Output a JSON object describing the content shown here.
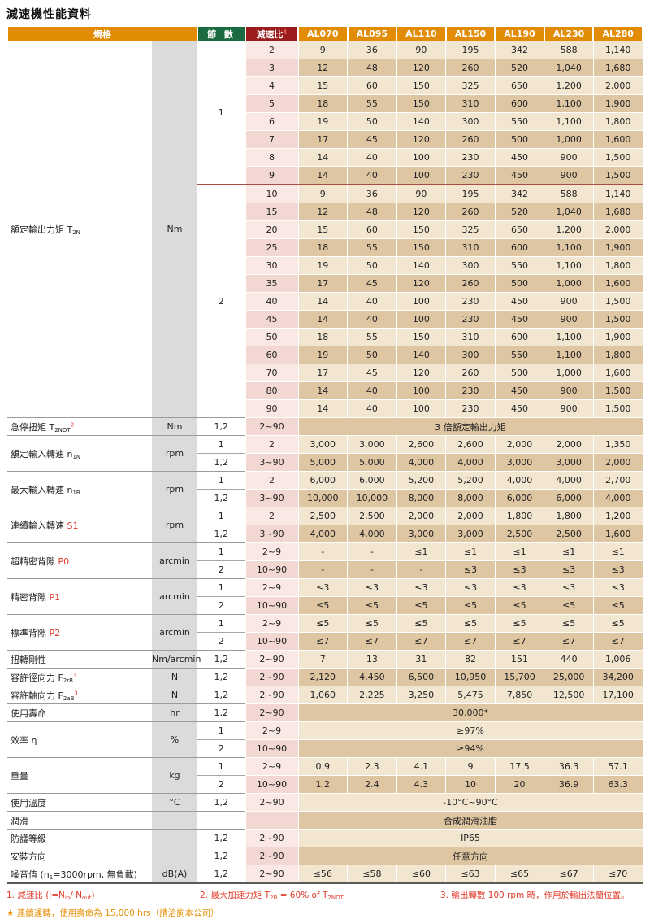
{
  "title": "減速機性能資料",
  "header": {
    "spec": "規格",
    "stages": "節 數",
    "ratio": "減速比",
    "ratio_footnote": "1",
    "models": [
      "AL070",
      "AL095",
      "AL110",
      "AL150",
      "AL190",
      "AL230",
      "AL280"
    ]
  },
  "torque": {
    "label_parts": [
      {
        "t": "額定輸出力矩 T"
      },
      {
        "t": "2N",
        "sub": true
      }
    ],
    "unit": "Nm",
    "groups": [
      {
        "stage": "1",
        "rows": [
          {
            "ratio": "2",
            "values": [
              "9",
              "36",
              "90",
              "195",
              "342",
              "588",
              "1,140"
            ]
          },
          {
            "ratio": "3",
            "values": [
              "12",
              "48",
              "120",
              "260",
              "520",
              "1,040",
              "1,680"
            ]
          },
          {
            "ratio": "4",
            "values": [
              "15",
              "60",
              "150",
              "325",
              "650",
              "1,200",
              "2,000"
            ]
          },
          {
            "ratio": "5",
            "values": [
              "18",
              "55",
              "150",
              "310",
              "600",
              "1,100",
              "1,900"
            ]
          },
          {
            "ratio": "6",
            "values": [
              "19",
              "50",
              "140",
              "300",
              "550",
              "1,100",
              "1,800"
            ]
          },
          {
            "ratio": "7",
            "values": [
              "17",
              "45",
              "120",
              "260",
              "500",
              "1,000",
              "1,600"
            ]
          },
          {
            "ratio": "8",
            "values": [
              "14",
              "40",
              "100",
              "230",
              "450",
              "900",
              "1,500"
            ]
          },
          {
            "ratio": "9",
            "values": [
              "14",
              "40",
              "100",
              "230",
              "450",
              "900",
              "1,500"
            ]
          }
        ]
      },
      {
        "stage": "2",
        "rows": [
          {
            "ratio": "10",
            "values": [
              "9",
              "36",
              "90",
              "195",
              "342",
              "588",
              "1,140"
            ]
          },
          {
            "ratio": "15",
            "values": [
              "12",
              "48",
              "120",
              "260",
              "520",
              "1,040",
              "1,680"
            ]
          },
          {
            "ratio": "20",
            "values": [
              "15",
              "60",
              "150",
              "325",
              "650",
              "1,200",
              "2,000"
            ]
          },
          {
            "ratio": "25",
            "values": [
              "18",
              "55",
              "150",
              "310",
              "600",
              "1,100",
              "1,900"
            ]
          },
          {
            "ratio": "30",
            "values": [
              "19",
              "50",
              "140",
              "300",
              "550",
              "1,100",
              "1,800"
            ]
          },
          {
            "ratio": "35",
            "values": [
              "17",
              "45",
              "120",
              "260",
              "500",
              "1,000",
              "1,600"
            ]
          },
          {
            "ratio": "40",
            "values": [
              "14",
              "40",
              "100",
              "230",
              "450",
              "900",
              "1,500"
            ]
          },
          {
            "ratio": "45",
            "values": [
              "14",
              "40",
              "100",
              "230",
              "450",
              "900",
              "1,500"
            ]
          },
          {
            "ratio": "50",
            "values": [
              "18",
              "55",
              "150",
              "310",
              "600",
              "1,100",
              "1,900"
            ]
          },
          {
            "ratio": "60",
            "values": [
              "19",
              "50",
              "140",
              "300",
              "550",
              "1,100",
              "1,800"
            ]
          },
          {
            "ratio": "70",
            "values": [
              "17",
              "45",
              "120",
              "260",
              "500",
              "1,000",
              "1,600"
            ]
          },
          {
            "ratio": "80",
            "values": [
              "14",
              "40",
              "100",
              "230",
              "450",
              "900",
              "1,500"
            ]
          },
          {
            "ratio": "90",
            "values": [
              "14",
              "40",
              "100",
              "230",
              "450",
              "900",
              "1,500"
            ]
          }
        ]
      }
    ]
  },
  "spec_groups": [
    {
      "label_parts": [
        {
          "t": "急停扭矩 T"
        },
        {
          "t": "2NOT",
          "sub": true
        },
        {
          "t": "2",
          "sup": true,
          "red": true
        }
      ],
      "unit": "Nm",
      "rows": [
        {
          "stages": "1,2",
          "ratio": "2~90",
          "span": "3 倍額定輸出力矩"
        }
      ]
    },
    {
      "label_parts": [
        {
          "t": "額定輸入轉速 n"
        },
        {
          "t": "1N",
          "sub": true
        }
      ],
      "unit": "rpm",
      "rows": [
        {
          "stages": "1",
          "ratio": "2",
          "values": [
            "3,000",
            "3,000",
            "2,600",
            "2,600",
            "2,000",
            "2,000",
            "1,350"
          ]
        },
        {
          "stages": "1,2",
          "ratio": "3~90",
          "values": [
            "5,000",
            "5,000",
            "4,000",
            "4,000",
            "3,000",
            "3,000",
            "2,000"
          ]
        }
      ]
    },
    {
      "label_parts": [
        {
          "t": "最大輸入轉速 n"
        },
        {
          "t": "1B",
          "sub": true
        }
      ],
      "unit": "rpm",
      "rows": [
        {
          "stages": "1",
          "ratio": "2",
          "values": [
            "6,000",
            "6,000",
            "5,200",
            "5,200",
            "4,000",
            "4,000",
            "2,700"
          ]
        },
        {
          "stages": "1,2",
          "ratio": "3~90",
          "values": [
            "10,000",
            "10,000",
            "8,000",
            "8,000",
            "6,000",
            "6,000",
            "4,000"
          ]
        }
      ]
    },
    {
      "label_parts": [
        {
          "t": "連續輸入轉速 "
        },
        {
          "t": "S1",
          "red": true
        }
      ],
      "unit": "rpm",
      "rows": [
        {
          "stages": "1",
          "ratio": "2",
          "values": [
            "2,500",
            "2,500",
            "2,000",
            "2,000",
            "1,800",
            "1,800",
            "1,200"
          ]
        },
        {
          "stages": "1,2",
          "ratio": "3~90",
          "values": [
            "4,000",
            "4,000",
            "3,000",
            "3,000",
            "2,500",
            "2,500",
            "1,600"
          ]
        }
      ]
    },
    {
      "label_parts": [
        {
          "t": "超精密背隙 "
        },
        {
          "t": "P0",
          "red": true
        }
      ],
      "unit": "arcmin",
      "rows": [
        {
          "stages": "1",
          "ratio": "2~9",
          "values": [
            "-",
            "-",
            "≤1",
            "≤1",
            "≤1",
            "≤1",
            "≤1"
          ]
        },
        {
          "stages": "2",
          "ratio": "10~90",
          "values": [
            "-",
            "-",
            "-",
            "≤3",
            "≤3",
            "≤3",
            "≤3"
          ]
        }
      ]
    },
    {
      "label_parts": [
        {
          "t": "精密背隙 "
        },
        {
          "t": "P1",
          "red": true
        }
      ],
      "unit": "arcmin",
      "rows": [
        {
          "stages": "1",
          "ratio": "2~9",
          "values": [
            "≤3",
            "≤3",
            "≤3",
            "≤3",
            "≤3",
            "≤3",
            "≤3"
          ]
        },
        {
          "stages": "2",
          "ratio": "10~90",
          "values": [
            "≤5",
            "≤5",
            "≤5",
            "≤5",
            "≤5",
            "≤5",
            "≤5"
          ]
        }
      ]
    },
    {
      "label_parts": [
        {
          "t": "標準背隙 "
        },
        {
          "t": "P2",
          "red": true
        }
      ],
      "unit": "arcmin",
      "rows": [
        {
          "stages": "1",
          "ratio": "2~9",
          "values": [
            "≤5",
            "≤5",
            "≤5",
            "≤5",
            "≤5",
            "≤5",
            "≤5"
          ]
        },
        {
          "stages": "2",
          "ratio": "10~90",
          "values": [
            "≤7",
            "≤7",
            "≤7",
            "≤7",
            "≤7",
            "≤7",
            "≤7"
          ]
        }
      ]
    },
    {
      "label_parts": [
        {
          "t": "扭轉剛性"
        }
      ],
      "unit": "Nm/arcmin",
      "rows": [
        {
          "stages": "1,2",
          "ratio": "2~90",
          "values": [
            "7",
            "13",
            "31",
            "82",
            "151",
            "440",
            "1,006"
          ]
        }
      ]
    },
    {
      "label_parts": [
        {
          "t": "容許徑向力 F"
        },
        {
          "t": "2rB",
          "sub": true
        },
        {
          "t": "3",
          "sup": true,
          "red": true
        }
      ],
      "unit": "N",
      "rows": [
        {
          "stages": "1,2",
          "ratio": "2~90",
          "values": [
            "2,120",
            "4,450",
            "6,500",
            "10,950",
            "15,700",
            "25,000",
            "34,200"
          ]
        }
      ]
    },
    {
      "label_parts": [
        {
          "t": "容許軸向力 F"
        },
        {
          "t": "2aB",
          "sub": true
        },
        {
          "t": "3",
          "sup": true,
          "red": true
        }
      ],
      "unit": "N",
      "rows": [
        {
          "stages": "1,2",
          "ratio": "2~90",
          "values": [
            "1,060",
            "2,225",
            "3,250",
            "5,475",
            "7,850",
            "12,500",
            "17,100"
          ]
        }
      ]
    },
    {
      "label_parts": [
        {
          "t": "使用壽命"
        }
      ],
      "unit": "hr",
      "rows": [
        {
          "stages": "1,2",
          "ratio": "2~90",
          "span": "30,000*"
        }
      ]
    },
    {
      "label_parts": [
        {
          "t": "效率 η"
        }
      ],
      "unit": "%",
      "rows": [
        {
          "stages": "1",
          "ratio": "2~9",
          "span": "≥97%"
        },
        {
          "stages": "2",
          "ratio": "10~90",
          "span": "≥94%"
        }
      ]
    },
    {
      "label_parts": [
        {
          "t": "重量"
        }
      ],
      "unit": "kg",
      "rows": [
        {
          "stages": "1",
          "ratio": "2~9",
          "values": [
            "0.9",
            "2.3",
            "4.1",
            "9",
            "17.5",
            "36.3",
            "57.1"
          ]
        },
        {
          "stages": "2",
          "ratio": "10~90",
          "values": [
            "1.2",
            "2.4",
            "4.3",
            "10",
            "20",
            "36.9",
            "63.3"
          ]
        }
      ]
    },
    {
      "label_parts": [
        {
          "t": "使用溫度"
        }
      ],
      "unit": "°C",
      "rows": [
        {
          "stages": "1,2",
          "ratio": "2~90",
          "span": "-10°C~90°C"
        }
      ]
    },
    {
      "label_parts": [
        {
          "t": "潤滑"
        }
      ],
      "unit": "",
      "rows": [
        {
          "stages": "",
          "ratio": "",
          "span": "合成潤滑油脂"
        }
      ]
    },
    {
      "label_parts": [
        {
          "t": "防護等級"
        }
      ],
      "unit": "",
      "rows": [
        {
          "stages": "1,2",
          "ratio": "2~90",
          "span": "IP65"
        }
      ]
    },
    {
      "label_parts": [
        {
          "t": "安裝方向"
        }
      ],
      "unit": "",
      "rows": [
        {
          "stages": "1,2",
          "ratio": "2~90",
          "span": "任意方向"
        }
      ]
    },
    {
      "label_parts": [
        {
          "t": "噪音值 (n"
        },
        {
          "t": "1",
          "sub": true
        },
        {
          "t": "=3000rpm, 無負載)"
        }
      ],
      "unit": "dB(A)",
      "rows": [
        {
          "stages": "1,2",
          "ratio": "2~90",
          "values": [
            "≤56",
            "≤58",
            "≤60",
            "≤63",
            "≤65",
            "≤67",
            "≤70"
          ]
        }
      ]
    }
  ],
  "footnotes": {
    "fn1_parts": [
      {
        "t": "1. 減速比 (i=N"
      },
      {
        "t": "in",
        "sub": true
      },
      {
        "t": "/ N"
      },
      {
        "t": "out",
        "sub": true
      },
      {
        "t": ")"
      }
    ],
    "fn2_parts": [
      {
        "t": "2. 最大加速力矩 T"
      },
      {
        "t": "2B",
        "sub": true
      },
      {
        "t": " = 60% of T"
      },
      {
        "t": "2NOT",
        "sub": true
      }
    ],
    "fn3_parts": [
      {
        "t": "3. 輸出轉數 100 rpm 時，作用於輸出法蘭位置。"
      }
    ],
    "star_parts": [
      {
        "t": "★ 連續運轉，使用壽命為 15,000 hrs（請洽詢本公司）"
      }
    ]
  },
  "colors": {
    "header_orange": "#e18c04",
    "header_green": "#1b6b40",
    "header_dark_red": "#9a1c1c",
    "row_light": "#f3e6d1",
    "row_tan": "#dfc6a3",
    "ratio_pink_light": "#fae8e4",
    "ratio_pink_dark": "#f2d7d2",
    "unit_gray": "#dbdbdb",
    "section_divider_red": "#a94c44",
    "footnote_red": "#e03a2a",
    "star_orange": "#e6920a"
  }
}
